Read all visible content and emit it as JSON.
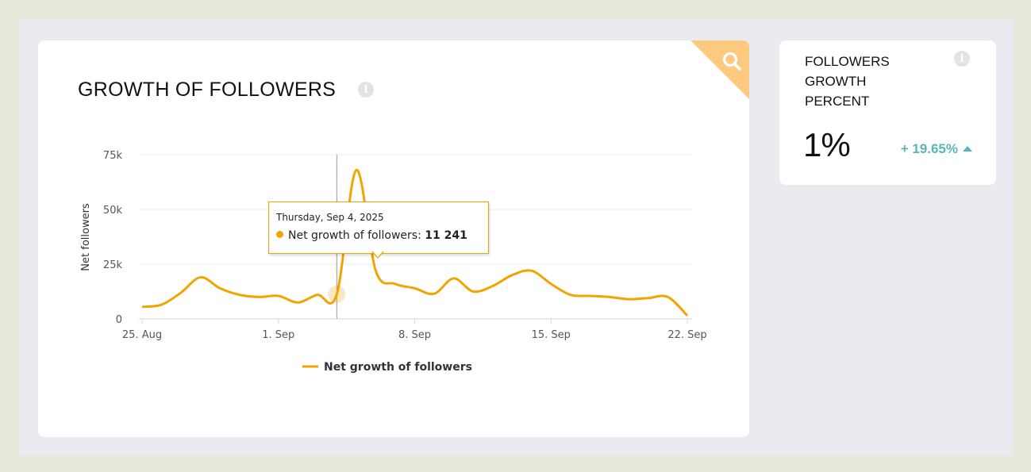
{
  "main_card": {
    "title": "GROWTH OF FOLLOWERS",
    "info_icon": "info-icon",
    "corner_icon": "search-icon"
  },
  "side_card": {
    "title": "FOLLOWERS GROWTH PERCENT",
    "value": "1%",
    "change": "+ 19.65%",
    "change_direction": "up",
    "info_icon": "info-icon"
  },
  "tooltip": {
    "date": "Thursday, Sep 4, 2025",
    "series_label": "Net growth of followers:",
    "value": "11 241"
  },
  "colors": {
    "line": "#f0a500",
    "corner": "#fcc97e",
    "positive": "#5ab5b5"
  },
  "chart_data": {
    "type": "line",
    "title": "GROWTH OF FOLLOWERS",
    "xlabel": "",
    "ylabel": "Net followers",
    "ylim": [
      0,
      75000
    ],
    "y_ticks": [
      "0",
      "25k",
      "50k",
      "75k"
    ],
    "y_tick_values": [
      0,
      25000,
      50000,
      75000
    ],
    "x_ticks": [
      "25. Aug",
      "1. Sep",
      "8. Sep",
      "15. Sep",
      "22. Sep"
    ],
    "x_tick_days": [
      0,
      7,
      14,
      21,
      28
    ],
    "legend": "Net growth of followers",
    "highlight_day": 10,
    "series": [
      {
        "name": "Net growth of followers",
        "x": [
          0,
          1,
          2,
          3,
          4,
          5,
          6,
          7,
          8,
          9,
          10,
          11,
          12,
          13,
          14,
          15,
          16,
          17,
          18,
          19,
          20,
          21,
          22,
          23,
          24,
          25,
          26,
          27,
          28
        ],
        "values": [
          5500,
          6500,
          12000,
          19000,
          14000,
          11000,
          10000,
          10500,
          7500,
          11000,
          11241,
          68000,
          22000,
          16000,
          14000,
          11500,
          18500,
          12500,
          15000,
          20000,
          22000,
          16000,
          11000,
          10500,
          10000,
          9000,
          9500,
          10000,
          1500
        ]
      }
    ]
  }
}
